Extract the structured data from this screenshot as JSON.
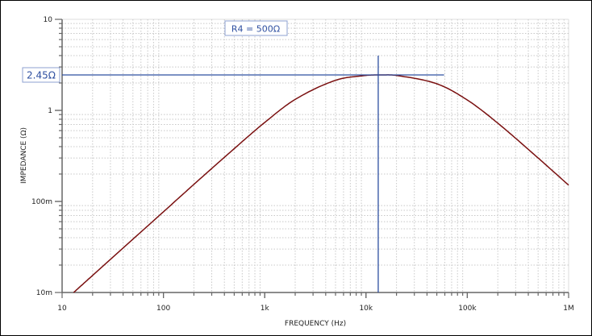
{
  "chart_data": {
    "type": "line",
    "title": "",
    "xlabel": "FREQUENCY (Hz)",
    "ylabel": "IMPEDANCE (Ω)",
    "x_scale": "log",
    "y_scale": "log",
    "xlim": [
      10,
      1000000
    ],
    "ylim": [
      0.01,
      10
    ],
    "x_ticks": [
      {
        "value": 10,
        "label": "10"
      },
      {
        "value": 100,
        "label": "100"
      },
      {
        "value": 1000,
        "label": "1k"
      },
      {
        "value": 10000,
        "label": "10k"
      },
      {
        "value": 100000,
        "label": "100k"
      },
      {
        "value": 1000000,
        "label": "1M"
      }
    ],
    "y_ticks": [
      {
        "value": 10,
        "label": "10"
      },
      {
        "value": 1,
        "label": "1"
      },
      {
        "value": 0.1,
        "label": "100m"
      },
      {
        "value": 0.01,
        "label": "10m"
      }
    ],
    "grid": true,
    "series": [
      {
        "color": "#7a1010",
        "x": [
          13,
          20,
          50,
          100,
          200,
          500,
          1000,
          2000,
          5000,
          10000,
          14000,
          20000,
          50000,
          100000,
          200000,
          500000,
          1000000
        ],
        "y": [
          0.01,
          0.0154,
          0.0385,
          0.0769,
          0.154,
          0.38,
          0.737,
          1.32,
          2.14,
          2.42,
          2.45,
          2.42,
          1.96,
          1.3,
          0.724,
          0.3,
          0.151
        ]
      }
    ],
    "annotations": {
      "legend_box": "R4 = 500Ω",
      "cursor_label": "2.45Ω",
      "cursor_value": 2.45,
      "cursor_frequency": 13200,
      "horizontal_cursor_end_frequency": 59000,
      "cursor_color": "#2e4fa0"
    },
    "colors": {
      "grid": "#c8c8c8",
      "axis": "#666666"
    }
  }
}
